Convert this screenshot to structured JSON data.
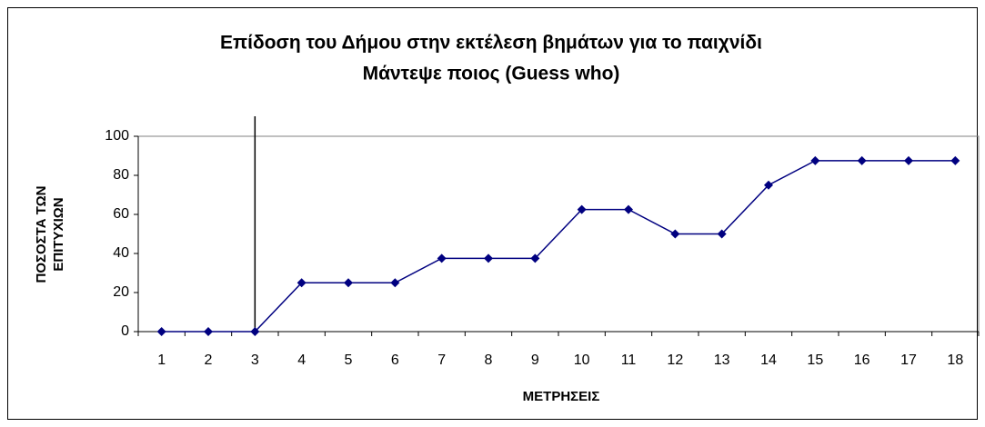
{
  "chart_data": {
    "type": "line",
    "title": [
      "Επίδοση του Δήμου στην εκτέλεση βημάτων για το παιχνίδι",
      "Μάντεψε ποιος (Guess who)"
    ],
    "x_label": "ΜΕΤΡΗΣΕΙΣ",
    "y_label": [
      "ΠΟΣΟΣΤΑ ΤΩΝ",
      "ΕΠΙΤΥΧΙΩΝ"
    ],
    "categories": [
      "1",
      "2",
      "3",
      "4",
      "5",
      "6",
      "7",
      "8",
      "9",
      "10",
      "11",
      "12",
      "13",
      "14",
      "15",
      "16",
      "17",
      "18"
    ],
    "series": [
      {
        "color": "#000080",
        "values": [
          0,
          0,
          0,
          25,
          25,
          25,
          37.5,
          37.5,
          37.5,
          62.5,
          62.5,
          50,
          50,
          75,
          87.5,
          87.5,
          87.5,
          87.5
        ]
      }
    ],
    "ylim": [
      0,
      100
    ],
    "yticks": [
      0,
      20,
      40,
      60,
      80,
      100
    ],
    "grid": false
  }
}
